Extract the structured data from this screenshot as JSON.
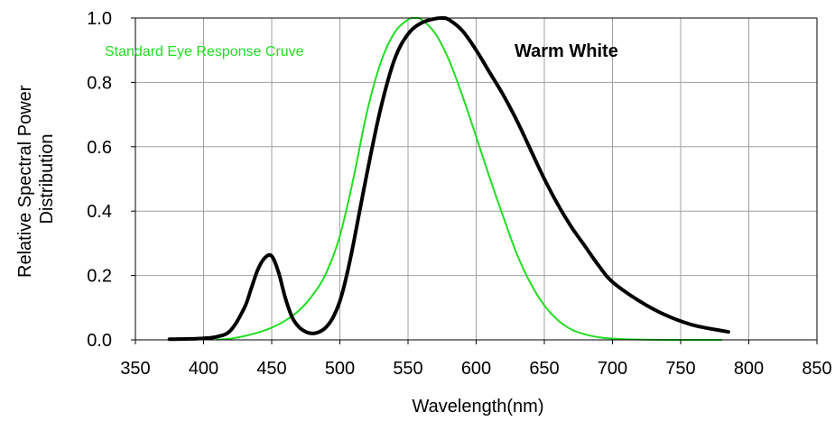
{
  "chart_data": {
    "type": "line",
    "xlabel": "Wavelength(nm)",
    "ylabel_lines": [
      "Relative Spectral Power",
      "Distribution"
    ],
    "xlim": [
      350,
      850
    ],
    "ylim": [
      0,
      1.0
    ],
    "x_ticks": [
      350,
      400,
      450,
      500,
      550,
      600,
      650,
      700,
      750,
      800,
      850
    ],
    "x_tick_labels": [
      "350",
      "400",
      "450",
      "500",
      "550",
      "600",
      "650",
      "700",
      "750",
      "800",
      "850"
    ],
    "y_ticks": [
      0.0,
      0.2,
      0.4,
      0.6,
      0.8,
      1.0
    ],
    "y_tick_labels": [
      "0.0",
      "0.2",
      "0.4",
      "0.6",
      "0.8",
      "1.0"
    ],
    "grid": true,
    "annotations": [
      {
        "text": "Standard Eye Response Cruve",
        "color": "#22dd22",
        "position": "top-left"
      },
      {
        "text": "Warm White",
        "color": "#000000",
        "position": "top-right"
      }
    ],
    "series": [
      {
        "name": "Standard Eye Response Cruve",
        "color": "#22dd22",
        "x": [
          410,
          420,
          430,
          440,
          450,
          460,
          470,
          480,
          490,
          500,
          510,
          520,
          530,
          540,
          550,
          555,
          560,
          570,
          580,
          590,
          600,
          610,
          620,
          630,
          640,
          650,
          660,
          670,
          680,
          690,
          700,
          720,
          740,
          760,
          780
        ],
        "y": [
          0.001,
          0.004,
          0.012,
          0.023,
          0.038,
          0.06,
          0.091,
          0.139,
          0.208,
          0.323,
          0.503,
          0.71,
          0.862,
          0.954,
          0.995,
          1.0,
          0.995,
          0.952,
          0.87,
          0.757,
          0.631,
          0.503,
          0.381,
          0.265,
          0.175,
          0.107,
          0.061,
          0.032,
          0.017,
          0.008,
          0.004,
          0.001,
          0.0,
          0.0,
          0.0
        ]
      },
      {
        "name": "Warm White",
        "color": "#000000",
        "x": [
          375,
          390,
          400,
          410,
          420,
          430,
          435,
          440,
          445,
          450,
          455,
          460,
          465,
          470,
          475,
          480,
          485,
          490,
          495,
          500,
          505,
          510,
          520,
          530,
          540,
          550,
          560,
          570,
          575,
          580,
          590,
          600,
          610,
          620,
          630,
          640,
          650,
          660,
          670,
          680,
          690,
          700,
          720,
          740,
          760,
          785
        ],
        "y": [
          0.002,
          0.003,
          0.005,
          0.01,
          0.03,
          0.1,
          0.16,
          0.22,
          0.255,
          0.26,
          0.21,
          0.13,
          0.07,
          0.04,
          0.025,
          0.02,
          0.025,
          0.04,
          0.07,
          0.12,
          0.2,
          0.3,
          0.52,
          0.72,
          0.87,
          0.95,
          0.985,
          0.998,
          1.0,
          0.995,
          0.96,
          0.9,
          0.83,
          0.76,
          0.68,
          0.59,
          0.5,
          0.42,
          0.35,
          0.29,
          0.23,
          0.18,
          0.12,
          0.075,
          0.045,
          0.025
        ]
      }
    ]
  }
}
